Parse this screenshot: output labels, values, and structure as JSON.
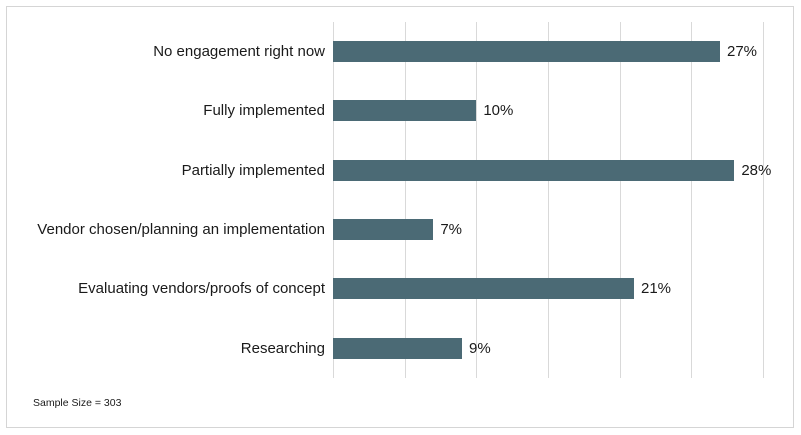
{
  "frame": {
    "background": "#ffffff",
    "border_color": "#d5d5d5"
  },
  "chart_data": {
    "type": "bar",
    "orientation": "horizontal",
    "title": "",
    "xlabel": "",
    "ylabel": "",
    "categories": [
      "No engagement right now",
      "Fully implemented",
      "Partially implemented",
      "Vendor chosen/planning an implementation",
      "Evaluating vendors/proofs of concept",
      "Researching"
    ],
    "values": [
      27,
      10,
      28,
      7,
      21,
      9
    ],
    "value_labels": [
      "27%",
      "10%",
      "28%",
      "7%",
      "21%",
      "9%"
    ],
    "xlim": [
      0,
      30
    ],
    "grid_step": 5,
    "grid": true,
    "legend": false,
    "bar_color": "#4b6a75",
    "gridline_color": "#d9d9d9",
    "label_color": "#1a1a1a"
  },
  "footnote": "Sample Size = 303"
}
